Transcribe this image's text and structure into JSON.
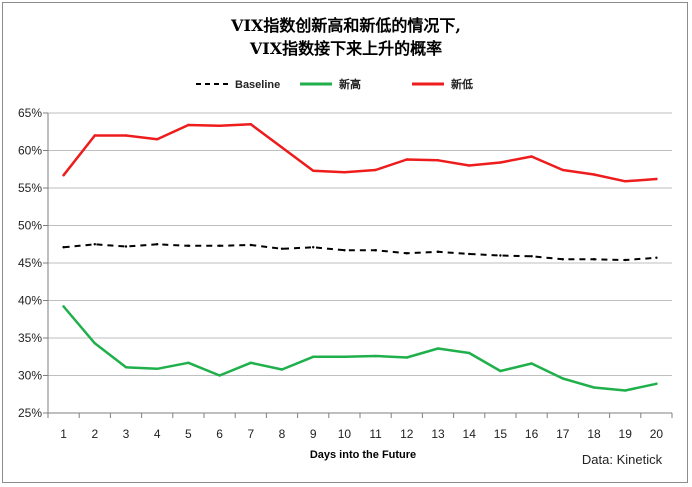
{
  "chart_data": {
    "type": "line",
    "title_line1": "VIX指数创新高和新低的情况下,",
    "title_line2": "VIX指数接下来上升的概率",
    "xlabel": "Days into the Future",
    "ylabel": "",
    "source": "Data: Kinetick",
    "x": [
      1,
      2,
      3,
      4,
      5,
      6,
      7,
      8,
      9,
      10,
      11,
      12,
      13,
      14,
      15,
      16,
      17,
      18,
      19,
      20
    ],
    "ylim": [
      25,
      65
    ],
    "yticks": [
      25,
      30,
      35,
      40,
      45,
      50,
      55,
      60,
      65
    ],
    "ytick_labels": [
      "25%",
      "30%",
      "35%",
      "40%",
      "45%",
      "50%",
      "55%",
      "60%",
      "65%"
    ],
    "legend_position": "top",
    "series": [
      {
        "name": "Baseline",
        "color": "#000000",
        "style": "dashed",
        "values": [
          47.1,
          47.5,
          47.2,
          47.5,
          47.3,
          47.3,
          47.4,
          46.9,
          47.1,
          46.7,
          46.7,
          46.3,
          46.5,
          46.2,
          46.0,
          45.9,
          45.5,
          45.5,
          45.4,
          45.7
        ]
      },
      {
        "name": "新高",
        "color": "#1fb04b",
        "style": "solid",
        "values": [
          39.2,
          34.3,
          31.1,
          30.9,
          31.7,
          30.0,
          31.7,
          30.8,
          32.5,
          32.5,
          32.6,
          32.4,
          33.6,
          33.0,
          30.6,
          31.6,
          29.6,
          28.4,
          28.0,
          28.9
        ]
      },
      {
        "name": "新低",
        "color": "#ee1c1c",
        "style": "solid",
        "values": [
          56.7,
          62.0,
          62.0,
          61.5,
          63.4,
          63.3,
          63.5,
          60.4,
          57.3,
          57.1,
          57.4,
          58.8,
          58.7,
          58.0,
          58.4,
          59.2,
          57.4,
          56.8,
          55.9,
          56.2
        ]
      }
    ]
  }
}
